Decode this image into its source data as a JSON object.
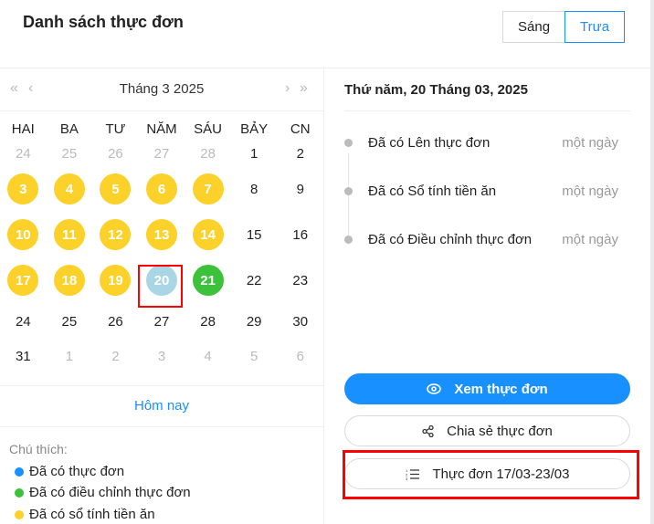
{
  "header": {
    "title": "Danh sách thực đơn",
    "session_options": [
      "Sáng",
      "Trưa"
    ],
    "selected_session": "Trưa"
  },
  "calendar": {
    "month_label": "Tháng 3 2025",
    "weekdays": [
      "HAI",
      "BA",
      "TƯ",
      "NĂM",
      "SÁU",
      "BẢY",
      "CN"
    ],
    "weeks": [
      [
        {
          "d": "24",
          "s": "muted"
        },
        {
          "d": "25",
          "s": "muted"
        },
        {
          "d": "26",
          "s": "muted"
        },
        {
          "d": "27",
          "s": "muted"
        },
        {
          "d": "28",
          "s": "muted"
        },
        {
          "d": "1",
          "s": "normal"
        },
        {
          "d": "2",
          "s": "normal"
        }
      ],
      [
        {
          "d": "3",
          "s": "yellow"
        },
        {
          "d": "4",
          "s": "yellow"
        },
        {
          "d": "5",
          "s": "yellow"
        },
        {
          "d": "6",
          "s": "yellow"
        },
        {
          "d": "7",
          "s": "yellow"
        },
        {
          "d": "8",
          "s": "normal"
        },
        {
          "d": "9",
          "s": "normal"
        }
      ],
      [
        {
          "d": "10",
          "s": "yellow"
        },
        {
          "d": "11",
          "s": "yellow"
        },
        {
          "d": "12",
          "s": "yellow"
        },
        {
          "d": "13",
          "s": "yellow"
        },
        {
          "d": "14",
          "s": "yellow"
        },
        {
          "d": "15",
          "s": "normal"
        },
        {
          "d": "16",
          "s": "normal"
        }
      ],
      [
        {
          "d": "17",
          "s": "yellow"
        },
        {
          "d": "18",
          "s": "yellow"
        },
        {
          "d": "19",
          "s": "yellow"
        },
        {
          "d": "20",
          "s": "selected"
        },
        {
          "d": "21",
          "s": "green"
        },
        {
          "d": "22",
          "s": "normal"
        },
        {
          "d": "23",
          "s": "normal"
        }
      ],
      [
        {
          "d": "24",
          "s": "normal"
        },
        {
          "d": "25",
          "s": "normal"
        },
        {
          "d": "26",
          "s": "normal"
        },
        {
          "d": "27",
          "s": "normal"
        },
        {
          "d": "28",
          "s": "normal"
        },
        {
          "d": "29",
          "s": "normal"
        },
        {
          "d": "30",
          "s": "normal"
        }
      ],
      [
        {
          "d": "31",
          "s": "normal"
        },
        {
          "d": "1",
          "s": "muted"
        },
        {
          "d": "2",
          "s": "muted"
        },
        {
          "d": "3",
          "s": "muted"
        },
        {
          "d": "4",
          "s": "muted"
        },
        {
          "d": "5",
          "s": "muted"
        },
        {
          "d": "6",
          "s": "muted"
        }
      ]
    ],
    "today_label": "Hôm nay"
  },
  "legend": {
    "title": "Chú thích:",
    "items": [
      {
        "label": "Đã có thực đơn",
        "color": "#1890ff"
      },
      {
        "label": "Đã có điều chỉnh thực đơn",
        "color": "#3cc13b"
      },
      {
        "label": "Đã có sổ tính tiền ăn",
        "color": "#fcd12a"
      }
    ]
  },
  "detail": {
    "date_title": "Thứ năm, 20 Tháng 03, 2025",
    "timeline": [
      {
        "text": "Đã có Lên thực đơn",
        "time": "một ngày"
      },
      {
        "text": "Đã có Sổ tính tiền ăn",
        "time": "một ngày"
      },
      {
        "text": "Đã có Điều chỉnh thực đơn",
        "time": "một ngày"
      }
    ],
    "view_button": "Xem thực đơn",
    "share_button": "Chia sẻ thực đơn",
    "week_button": "Thực đơn 17/03-23/03"
  }
}
